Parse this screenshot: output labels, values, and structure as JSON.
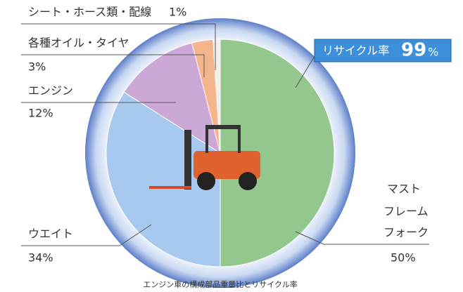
{
  "chart_data": {
    "type": "pie",
    "categories": [
      [
        "マスト",
        "フレーム",
        "フォーク"
      ],
      [
        "ウエイト"
      ],
      [
        "エンジン"
      ],
      [
        "各種オイル・タイヤ"
      ],
      [
        "シート・ホース類・配線"
      ]
    ],
    "values": [
      50,
      34,
      12,
      3,
      1
    ],
    "value_labels": [
      "50%",
      "34%",
      "12%",
      "3%",
      "1%"
    ],
    "colors": [
      "#93c78e",
      "#a8c9ef",
      "#cba8d6",
      "#f3b58c",
      "#f2eee9"
    ],
    "annotation": {
      "label": "リサイクル率",
      "value": 99,
      "unit": "%"
    },
    "caption": "エンジン車の構成部品重量比とリサイクル率"
  }
}
